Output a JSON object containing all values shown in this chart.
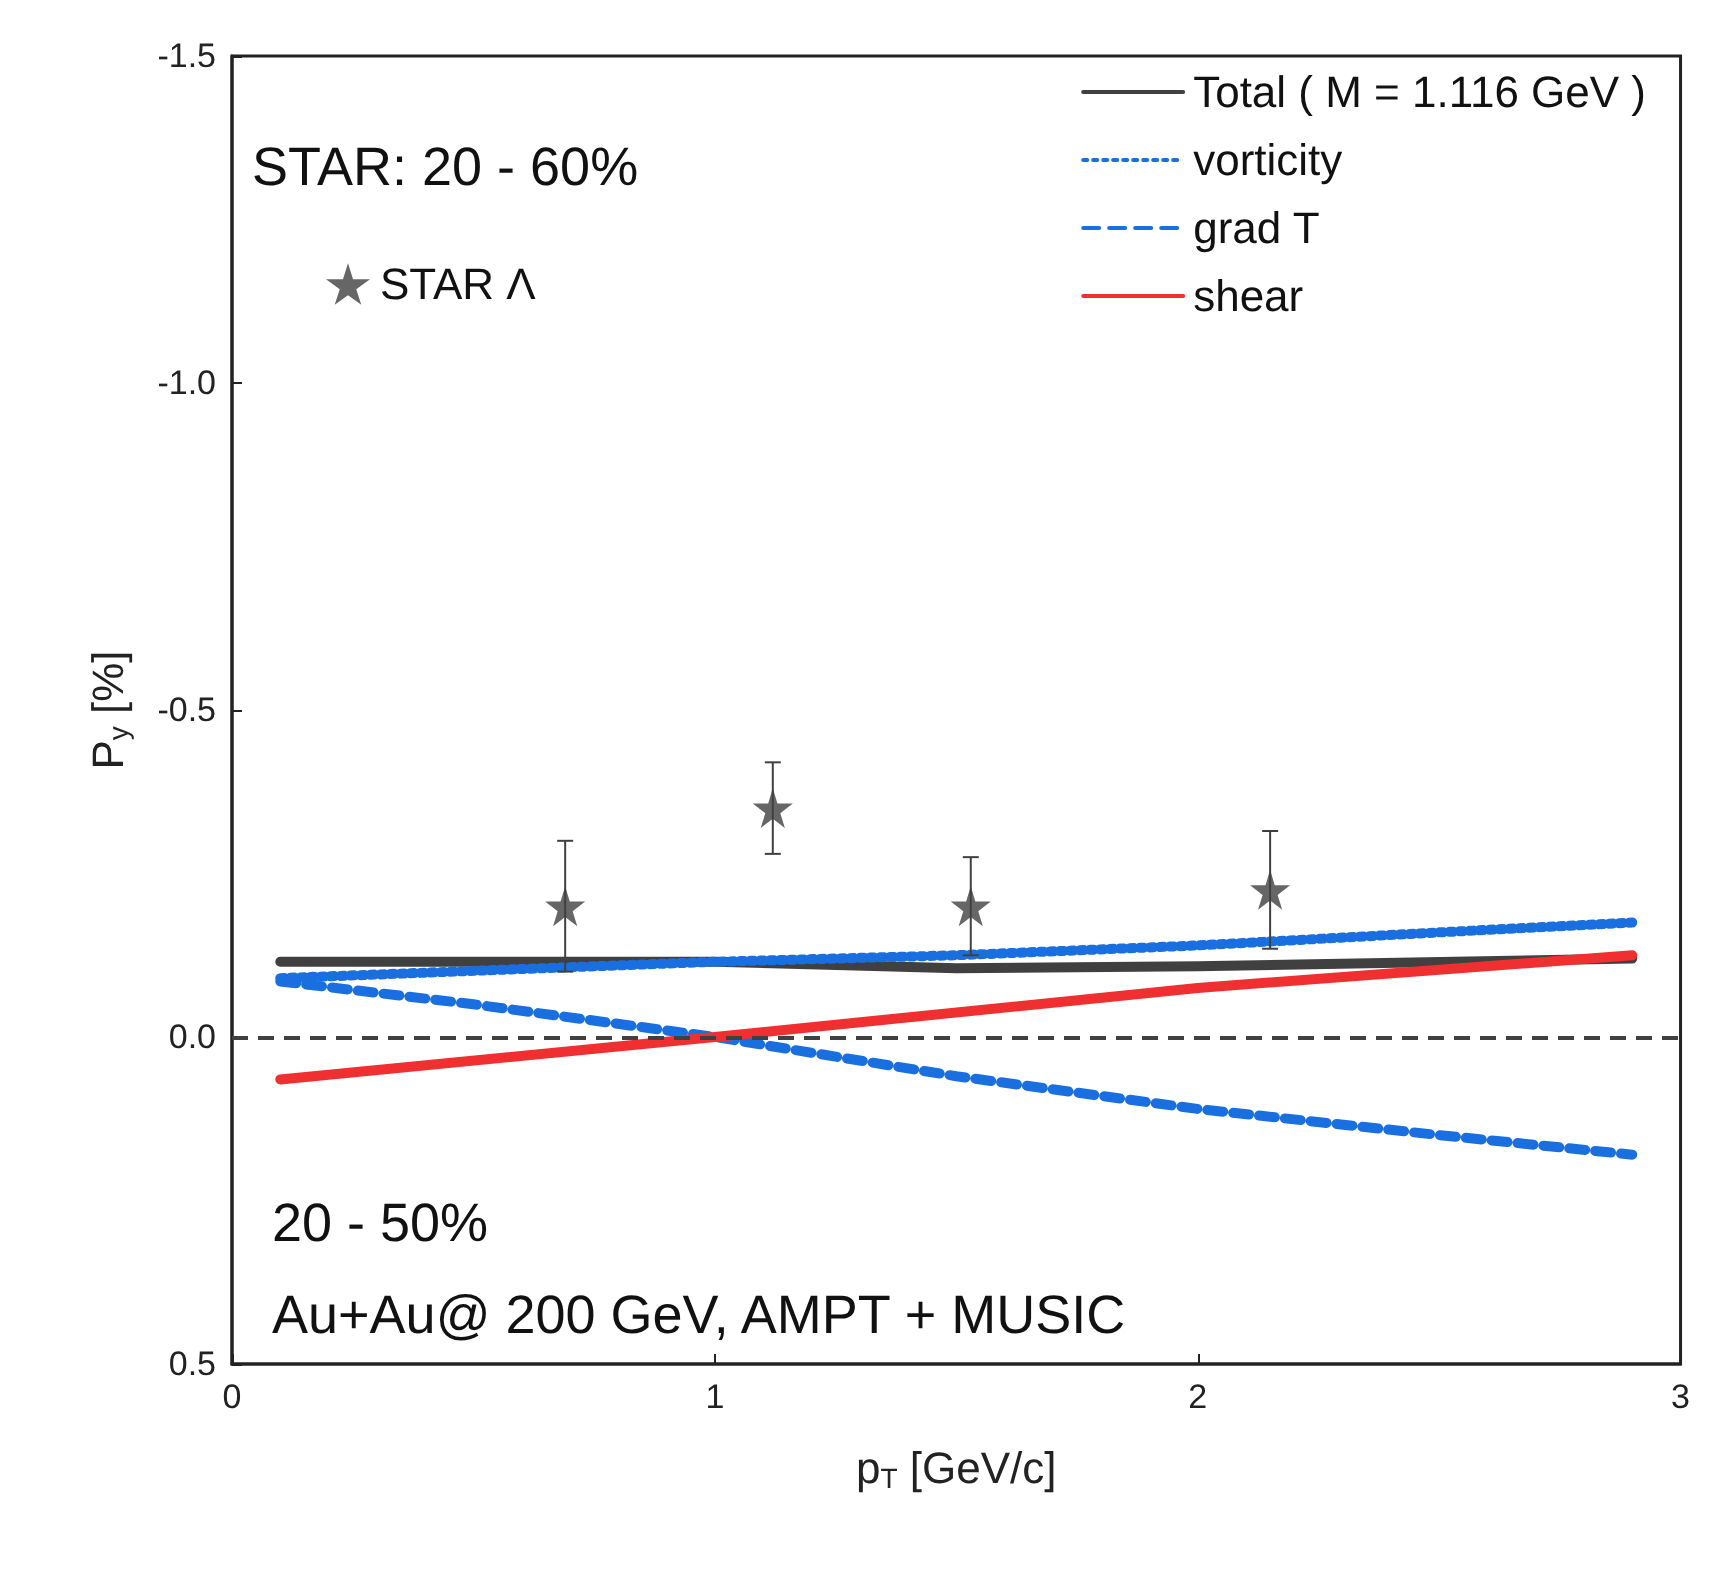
{
  "chart_data": {
    "type": "line",
    "xlabel": "p$_{T}$ [GeV/c]",
    "ylabel": "P$_{y}$ [%]",
    "xlim": [
      0,
      3
    ],
    "xticks": [
      0,
      1,
      2,
      3
    ],
    "ylim": [
      0.5,
      -1.5
    ],
    "yticks": [
      0.5,
      {
        "value": 0,
        "label": "0.0"
      },
      -0.5,
      {
        "value": -1,
        "label": "-1.0"
      },
      -1.5
    ],
    "legend": "top right",
    "grid": false,
    "annotations": [
      "STAR: 20 - 60%",
      "20 - 50%",
      "Au+Au@ 200 GeV, AMPT + MUSIC"
    ],
    "ref_lines": [
      {
        "axis": "y",
        "value": 0,
        "color": "#404040",
        "line_style": "dashed"
      }
    ],
    "series": [
      {
        "name": "Total ( M = 1.116 GeV )",
        "color": "#404040",
        "line_style": "solid",
        "marker": "none",
        "x": [
          0.1,
          1.0,
          1.5,
          2.0,
          2.9
        ],
        "values": [
          -0.115,
          -0.115,
          -0.105,
          -0.108,
          -0.12
        ]
      },
      {
        "name": "vorticity",
        "color": "#1a6fe0",
        "line_style": "dotted",
        "marker": "none",
        "x": [
          0.1,
          1.0,
          1.5,
          2.0,
          2.5,
          2.9
        ],
        "values": [
          -0.09,
          -0.115,
          -0.125,
          -0.14,
          -0.16,
          -0.175
        ]
      },
      {
        "name": "grad T",
        "color": "#1a6fe0",
        "line_style": "dashed",
        "marker": "none",
        "x": [
          0.1,
          0.5,
          1.0,
          1.5,
          2.0,
          2.5,
          2.9
        ],
        "values": [
          -0.085,
          -0.05,
          0.0,
          0.06,
          0.11,
          0.15,
          0.18
        ]
      },
      {
        "name": "shear",
        "color": "#f03030",
        "line_style": "solid",
        "marker": "none",
        "x": [
          0.1,
          1.0,
          2.0,
          2.9
        ],
        "values": [
          0.065,
          0.0,
          -0.075,
          -0.125
        ]
      },
      {
        "name": "STAR Λ",
        "type": "scatter",
        "color": "#404040",
        "marker": "star",
        "x": [
          0.69,
          1.12,
          1.53,
          2.15
        ],
        "values": [
          -0.2,
          -0.35,
          -0.2,
          -0.225
        ],
        "errors": [
          0.1,
          0.07,
          0.075,
          0.09
        ]
      }
    ]
  }
}
